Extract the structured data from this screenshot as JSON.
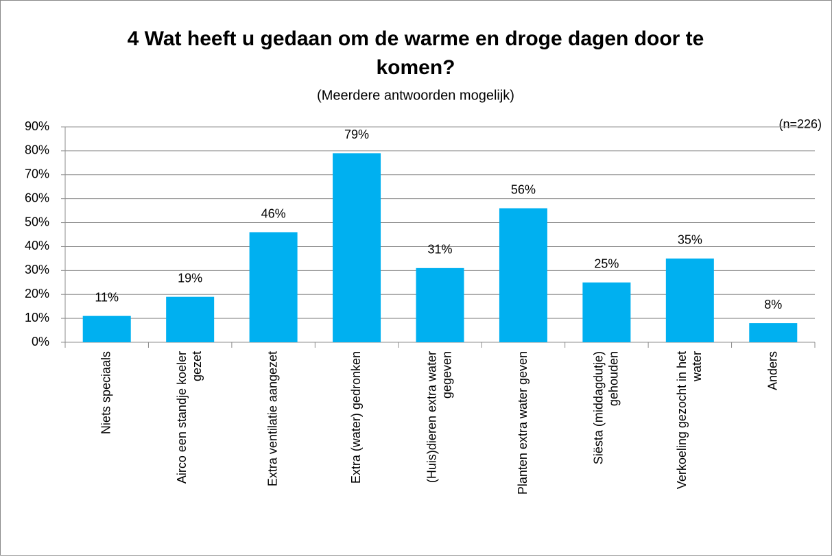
{
  "chart_data": {
    "type": "bar",
    "title": "4 Wat heeft u gedaan om de warme en droge dagen door te komen?",
    "subtitle": "(Meerdere antwoorden mogelijk)",
    "annotation": "(n=226)",
    "categories": [
      "Niets speciaals",
      "Airco een standje koeler gezet",
      "Extra ventilatie aangezet",
      "Extra (water) gedronken",
      "(Huis)dieren extra water gegeven",
      "Planten extra water geven",
      "Siësta (middagdutje) gehouden",
      "Verkoeling gezocht in het water",
      "Anders"
    ],
    "values": [
      11,
      19,
      46,
      79,
      31,
      56,
      25,
      35,
      8
    ],
    "value_labels": [
      "11%",
      "19%",
      "46%",
      "79%",
      "31%",
      "56%",
      "25%",
      "35%",
      "8%"
    ],
    "color": "#00b0f0",
    "ylim": [
      0,
      90
    ],
    "yticks": [
      {
        "value": 0,
        "label": "0%"
      },
      {
        "value": 10,
        "label": "10%"
      },
      {
        "value": 20,
        "label": "20%"
      },
      {
        "value": 30,
        "label": "30%"
      },
      {
        "value": 40,
        "label": "40%"
      },
      {
        "value": 50,
        "label": "50%"
      },
      {
        "value": 60,
        "label": "60%"
      },
      {
        "value": 70,
        "label": "70%"
      },
      {
        "value": 80,
        "label": "80%"
      },
      {
        "value": 90,
        "label": "90%"
      }
    ],
    "grid": true
  }
}
